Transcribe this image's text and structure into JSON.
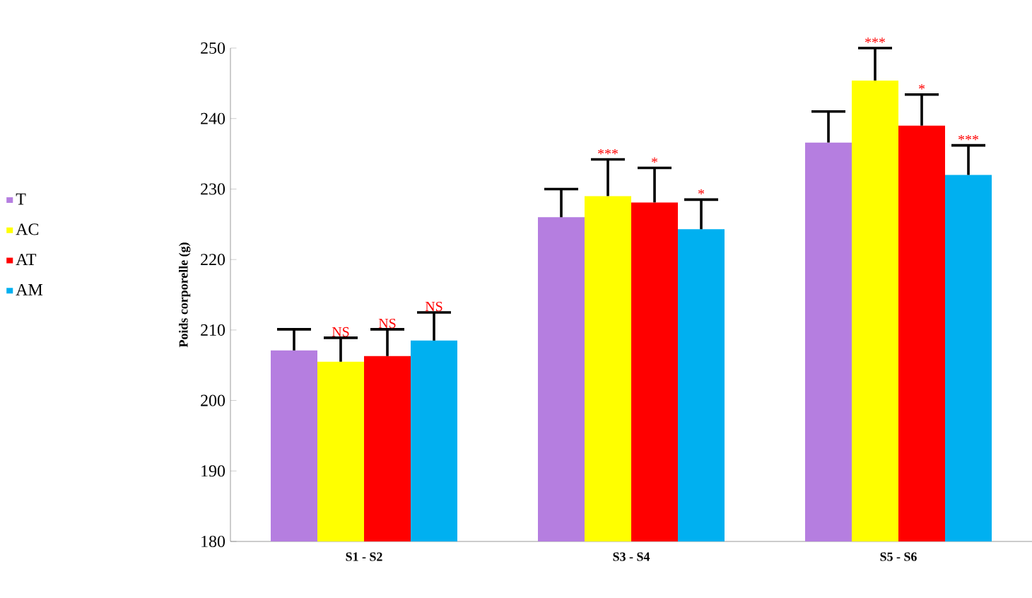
{
  "chart_data": {
    "type": "bar",
    "ylabel": "Poids corporelle (g)",
    "categories": [
      "S1 - S2",
      "S3 - S4",
      "S5 - S6"
    ],
    "series": [
      {
        "name": "T",
        "color": "#b57ee0",
        "values": [
          207.1,
          226,
          236.6
        ],
        "errors": [
          3,
          4,
          4.4
        ]
      },
      {
        "name": "AC",
        "color": "#ffff00",
        "values": [
          205.5,
          229,
          245.4
        ],
        "errors": [
          3.4,
          5.2,
          4.6
        ],
        "value_labels": [
          "NS",
          "***",
          "***"
        ]
      },
      {
        "name": "AT",
        "color": "#ff0000",
        "values": [
          206.3,
          228.1,
          239
        ],
        "errors": [
          3.8,
          4.9,
          4.4
        ],
        "value_labels": [
          "NS",
          "*",
          "*"
        ]
      },
      {
        "name": "AM",
        "color": "#00b0f0",
        "values": [
          208.5,
          224.3,
          232
        ],
        "errors": [
          4,
          4.2,
          4.2
        ],
        "value_labels": [
          "NS",
          "*",
          "***"
        ]
      }
    ],
    "ylim": [
      180,
      250
    ],
    "yticks": [
      180,
      190,
      200,
      210,
      220,
      230,
      240,
      250
    ],
    "legend": "left",
    "grid": false
  }
}
